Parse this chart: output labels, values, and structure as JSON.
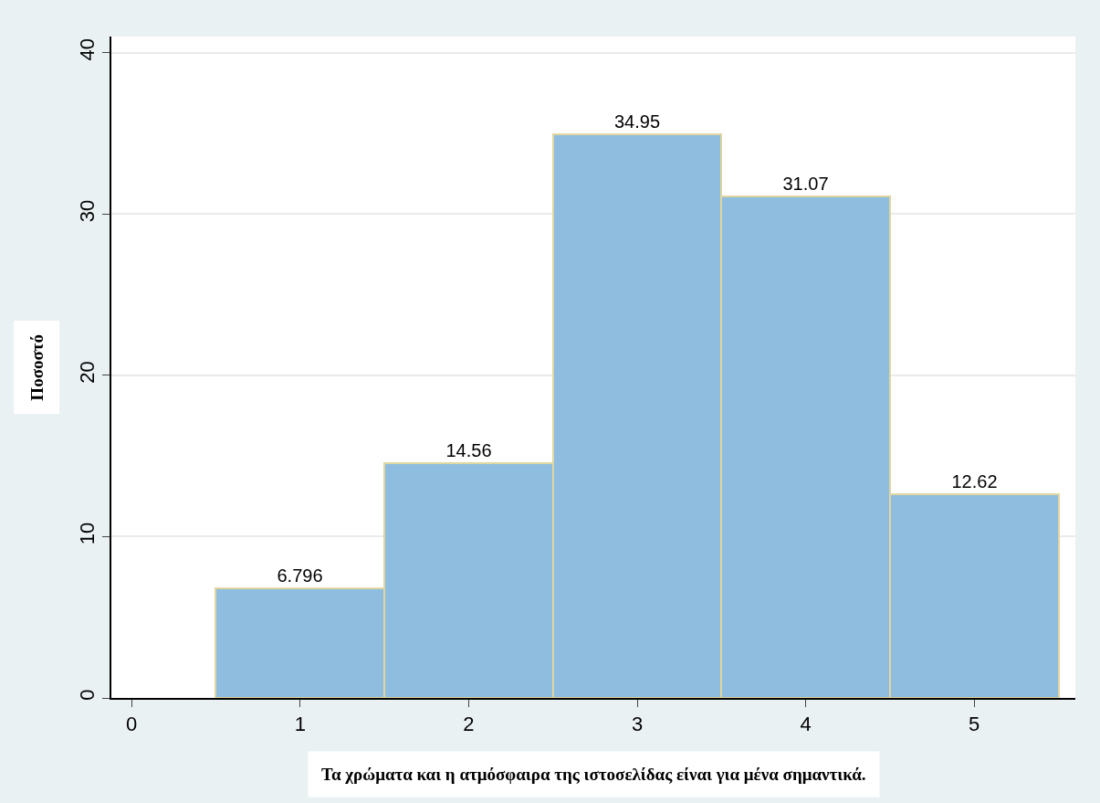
{
  "chart_data": {
    "type": "histogram",
    "bins": [
      0.5,
      1.5,
      2.5,
      3.5,
      4.5,
      5.5
    ],
    "values": [
      6.796,
      14.56,
      34.95,
      31.07,
      12.62
    ],
    "color": "#8fbde0",
    "xlabel": "Τα χρώματα και η ατμόσφαιρα της ιστοσελίδας είναι για μένα σημαντικά.",
    "ylabel": "Ποσοστό",
    "xlim": [
      -0.12,
      5.6
    ],
    "xticks": [
      0,
      1,
      2,
      3,
      4,
      5
    ],
    "ylim": [
      0,
      41
    ],
    "yticks": [
      0,
      10,
      20,
      30,
      40
    ],
    "grid": "y",
    "data_labels": true,
    "legend": false
  }
}
